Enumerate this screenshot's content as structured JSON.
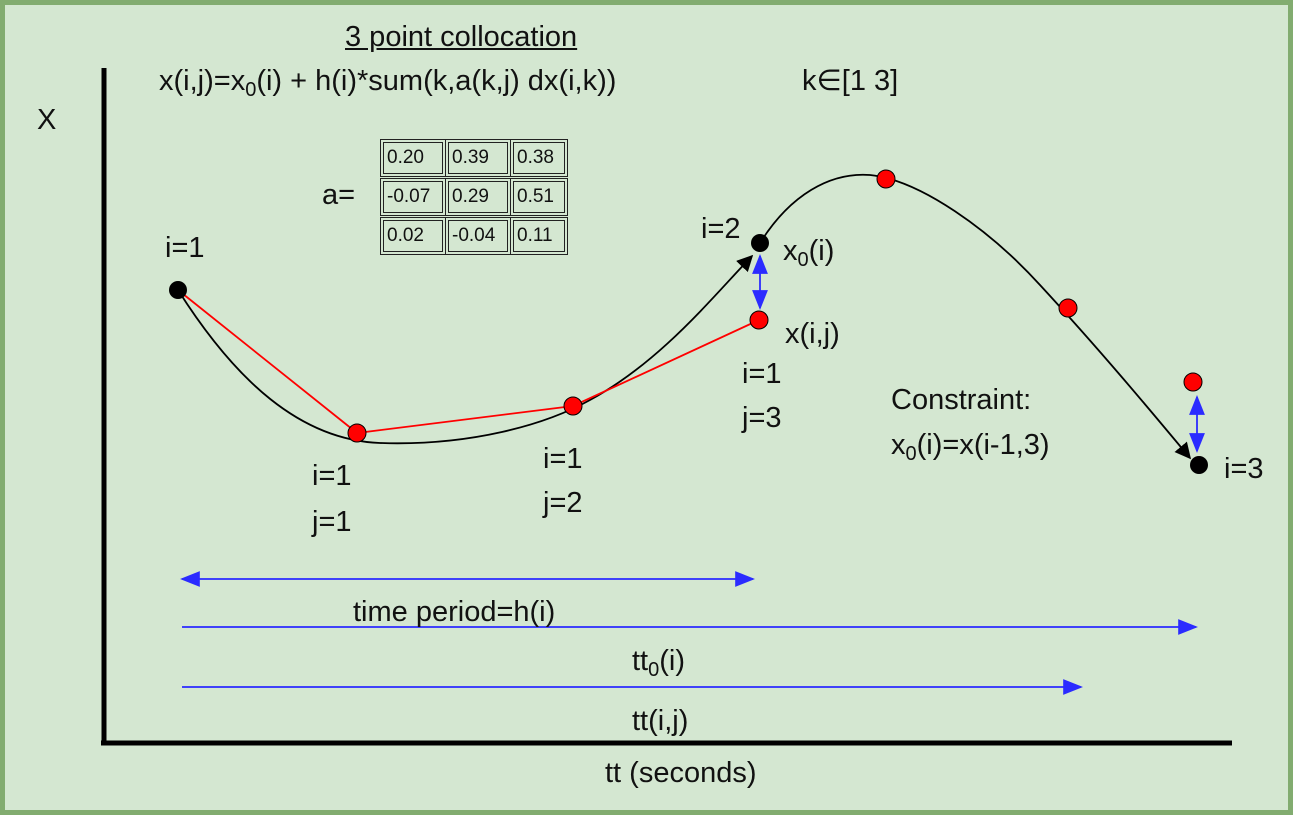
{
  "title": "3 point collocation",
  "formula": {
    "p1": "x(i,j)=x",
    "sub1": "0",
    "p2": "(i) + h(i)*sum(k,a(k,j) dx(i,k))"
  },
  "k_range": "k∈[1 3]",
  "y_axis_label": "X",
  "x_axis_label": "tt (seconds)",
  "matrix": {
    "label": "a=",
    "rows": [
      [
        "0.20",
        "0.39",
        "0.38"
      ],
      [
        "-0.07",
        "0.29",
        "0.51"
      ],
      [
        "0.02",
        "-0.04",
        "0.11"
      ]
    ]
  },
  "point_labels": {
    "i1": "i=1",
    "i2": "i=2",
    "i3": "i=3",
    "x0_main": "x",
    "x0_sub": "0",
    "x0_tail": "(i)",
    "xij": "x(i,j)",
    "c1_i": "i=1",
    "c1_j": "j=1",
    "c2_i": "i=1",
    "c2_j": "j=2",
    "c3_i": "i=1",
    "c3_j": "j=3"
  },
  "constraint": {
    "heading": "Constraint:",
    "main": "x",
    "sub": "0",
    "tail": "(i)=x(i-1,3)"
  },
  "spans": {
    "period": "time period=h(i)",
    "tt0_main": "tt",
    "tt0_sub": "0",
    "tt0_tail": "(i)",
    "ttij": "tt(i,j)"
  },
  "colors": {
    "background": "#d4e7d1",
    "border": "#82ac70",
    "curve": "#000000",
    "collocation_line": "#ff0000",
    "collocation_point": "#ff0000",
    "node_point": "#000000",
    "arrow_blue": "#2b2bff"
  }
}
